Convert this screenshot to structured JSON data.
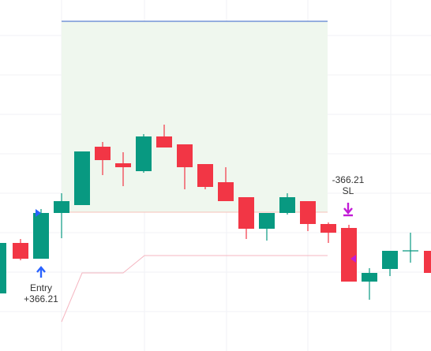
{
  "entry": {
    "label": "Entry",
    "pnl": "+366.21"
  },
  "stop": {
    "pnl": "-366.21",
    "label": "SL"
  }
}
